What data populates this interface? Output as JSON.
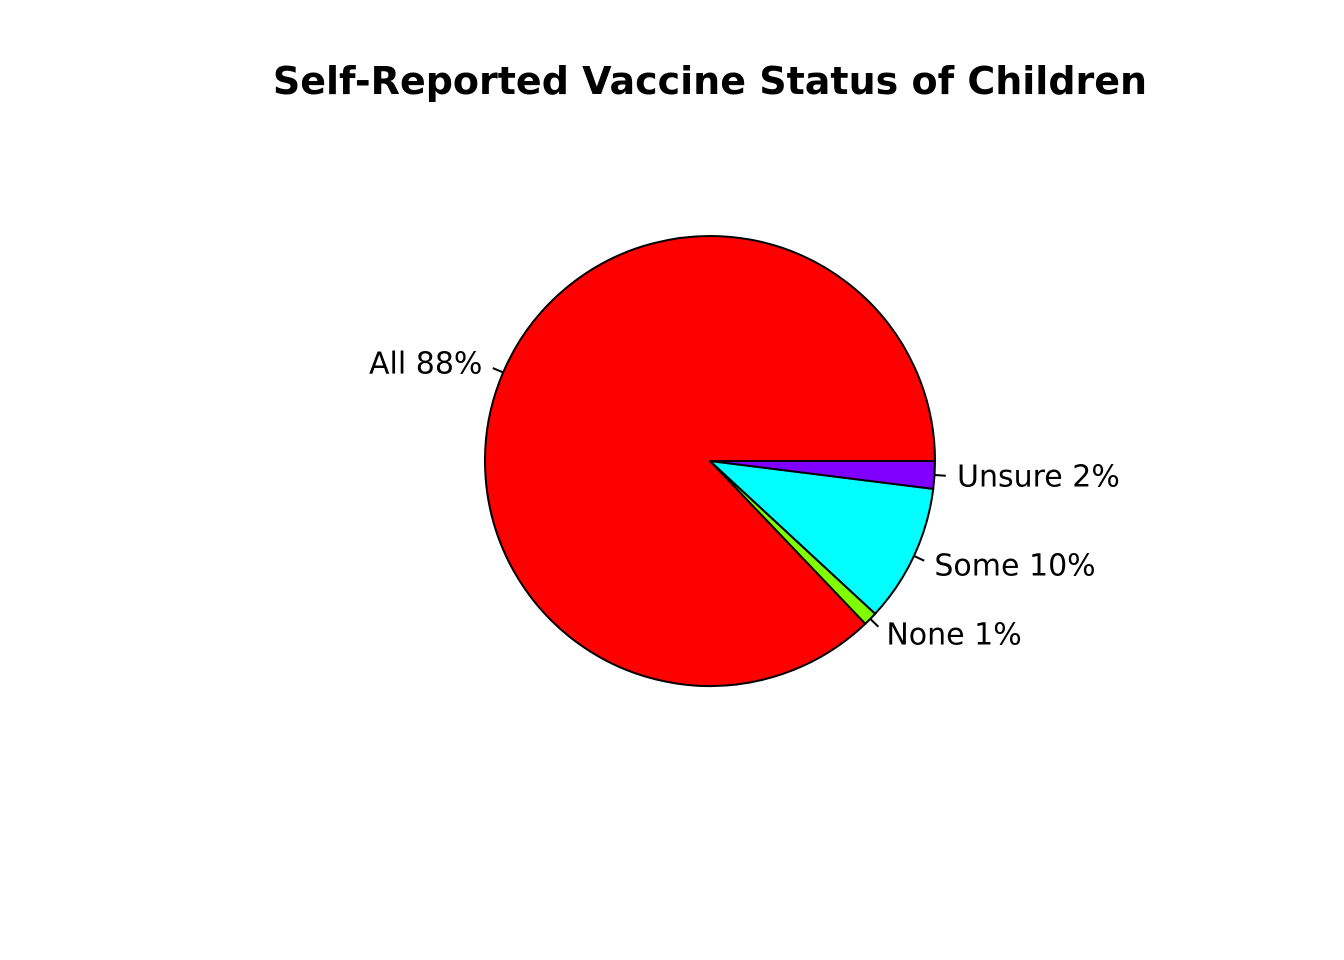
{
  "chart_data": {
    "type": "pie",
    "title": "Self-Reported Vaccine Status of Children",
    "start_angle_deg": 0,
    "direction": "counterclockwise",
    "slices": [
      {
        "name": "All",
        "value": 88,
        "label": "All 88%",
        "color": "#FF0000"
      },
      {
        "name": "None",
        "value": 1,
        "label": "None 1%",
        "color": "#80FF00"
      },
      {
        "name": "Some",
        "value": 10,
        "label": "Some 10%",
        "color": "#00FFFF"
      },
      {
        "name": "Unsure",
        "value": 2,
        "label": "Unsure 2%",
        "color": "#8000FF"
      }
    ],
    "legend": "none"
  }
}
